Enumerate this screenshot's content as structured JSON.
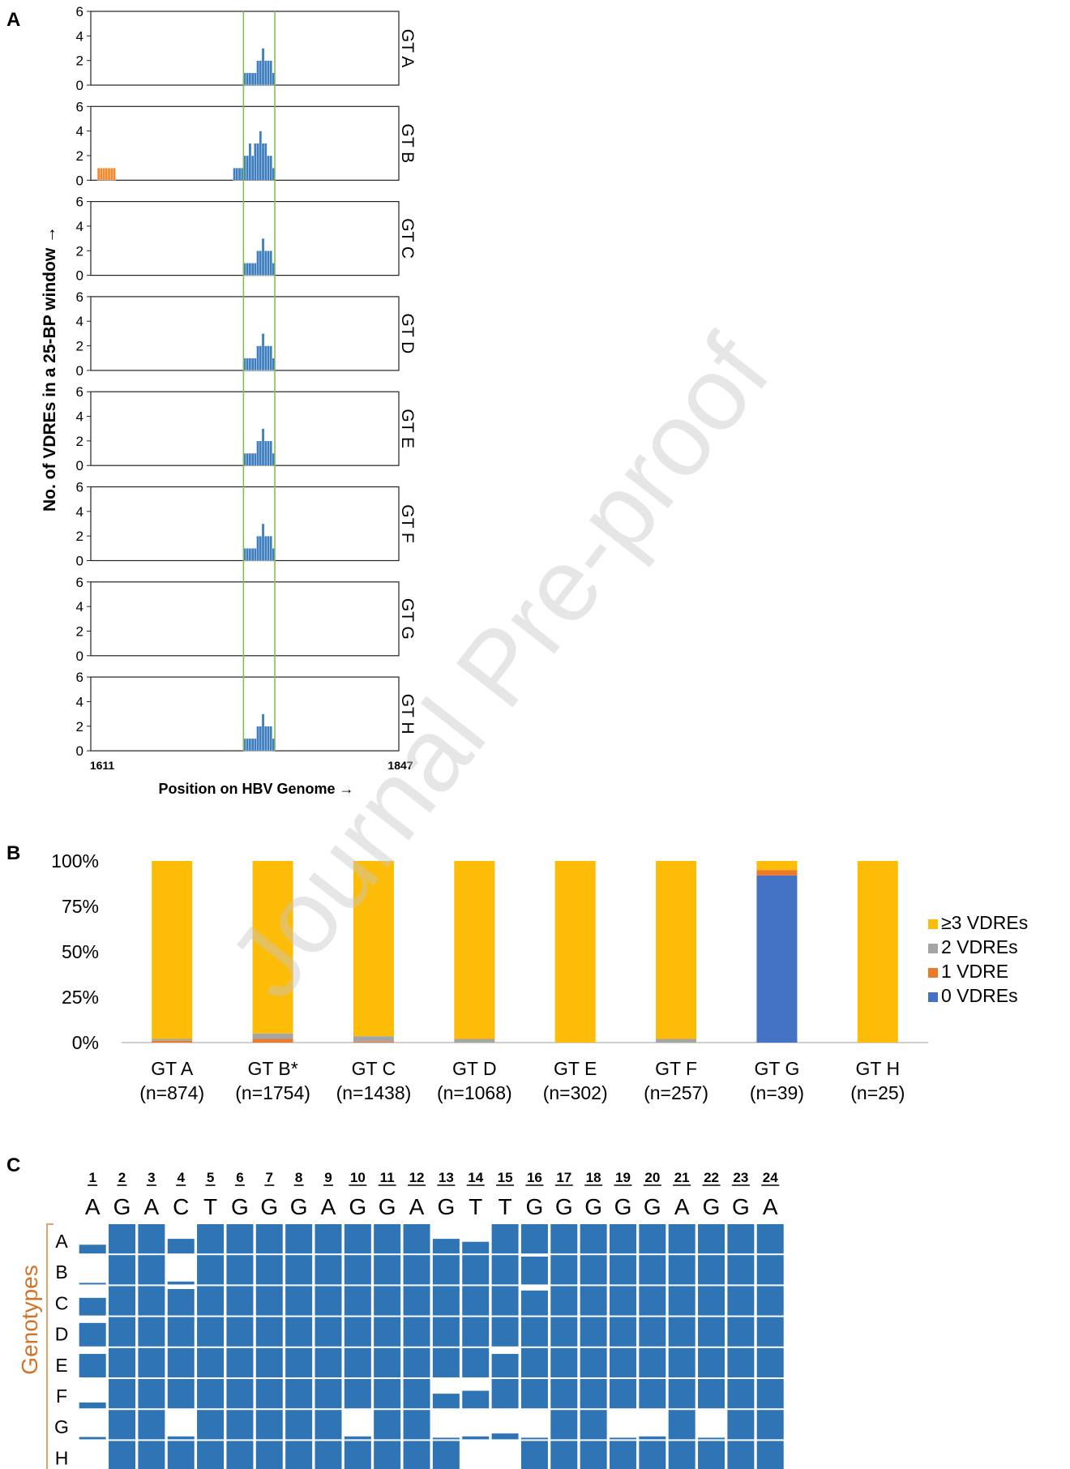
{
  "watermark": "Journal Pre-proof",
  "colors": {
    "bar_blue": "#3e7ebf",
    "bar_orange": "#f4892b",
    "highlight_green": "#7fbf5f",
    "stack_3plus": "#fdbc07",
    "stack_2": "#a5a5a5",
    "stack_1": "#ec7a2c",
    "stack_0": "#4472c4",
    "genotype_label": "#d0742c",
    "cell_blue": "#2f75b5"
  },
  "chart_data": [
    {
      "panel": "A",
      "type": "bar",
      "ylabel": "No. of VDREs in a 25-BP window →",
      "xlabel": "Position on HBV Genome →",
      "xlim": [
        1611,
        1847
      ],
      "x_tick_labels": [
        "1611",
        "1847"
      ],
      "ylim": [
        0,
        6
      ],
      "y_ticks": [
        0,
        2,
        4,
        6
      ],
      "y_tick_labels": [
        "0",
        "2",
        "4",
        "6"
      ],
      "highlight_region": [
        1728,
        1752
      ],
      "series": [
        {
          "name": "GT A",
          "x": [
            1729,
            1731,
            1733,
            1735,
            1737,
            1739,
            1741,
            1743,
            1745,
            1747,
            1749,
            1751
          ],
          "values": [
            1,
            1,
            1,
            1,
            1,
            2,
            2,
            3,
            2,
            2,
            2,
            1
          ]
        },
        {
          "name": "GT B",
          "x": [
            1617,
            1619,
            1621,
            1623,
            1625,
            1627,
            1629,
            1721,
            1723,
            1725,
            1727,
            1729,
            1731,
            1733,
            1735,
            1737,
            1739,
            1741,
            1743,
            1745,
            1747,
            1749,
            1751
          ],
          "values": [
            1,
            1,
            1,
            1,
            1,
            1,
            1,
            1,
            1,
            1,
            1,
            2,
            2,
            3,
            2,
            3,
            3,
            4,
            3,
            3,
            2,
            2,
            1
          ],
          "colors": [
            "orange",
            "orange",
            "orange",
            "orange",
            "orange",
            "orange",
            "orange",
            "blue",
            "blue",
            "blue",
            "blue",
            "blue",
            "blue",
            "blue",
            "blue",
            "blue",
            "blue",
            "blue",
            "blue",
            "blue",
            "blue",
            "blue",
            "blue"
          ]
        },
        {
          "name": "GT C",
          "x": [
            1729,
            1731,
            1733,
            1735,
            1737,
            1739,
            1741,
            1743,
            1745,
            1747,
            1749,
            1751
          ],
          "values": [
            1,
            1,
            1,
            1,
            1,
            2,
            2,
            3,
            2,
            2,
            2,
            1
          ]
        },
        {
          "name": "GT D",
          "x": [
            1729,
            1731,
            1733,
            1735,
            1737,
            1739,
            1741,
            1743,
            1745,
            1747,
            1749,
            1751
          ],
          "values": [
            1,
            1,
            1,
            1,
            1,
            2,
            2,
            3,
            2,
            2,
            2,
            1
          ]
        },
        {
          "name": "GT E",
          "x": [
            1729,
            1731,
            1733,
            1735,
            1737,
            1739,
            1741,
            1743,
            1745,
            1747,
            1749,
            1751
          ],
          "values": [
            1,
            1,
            1,
            1,
            1,
            2,
            2,
            3,
            2,
            2,
            2,
            1
          ]
        },
        {
          "name": "GT F",
          "x": [
            1729,
            1731,
            1733,
            1735,
            1737,
            1739,
            1741,
            1743,
            1745,
            1747,
            1749,
            1751
          ],
          "values": [
            1,
            1,
            1,
            1,
            1,
            2,
            2,
            3,
            2,
            2,
            2,
            1
          ]
        },
        {
          "name": "GT G",
          "x": [],
          "values": []
        },
        {
          "name": "GT H",
          "x": [
            1729,
            1731,
            1733,
            1735,
            1737,
            1739,
            1741,
            1743,
            1745,
            1747,
            1749,
            1751
          ],
          "values": [
            1,
            1,
            1,
            1,
            1,
            2,
            2,
            3,
            2,
            2,
            2,
            1
          ]
        }
      ]
    },
    {
      "panel": "B",
      "type": "bar",
      "stacked": true,
      "ylim": [
        0,
        100
      ],
      "y_tick_labels": [
        "100%",
        "75%",
        "50%",
        "25%",
        "0%"
      ],
      "y_ticks": [
        100,
        75,
        50,
        25,
        0
      ],
      "categories": [
        "GT A",
        "GT B*",
        "GT C",
        "GT D",
        "GT E",
        "GT F",
        "GT G",
        "GT H"
      ],
      "category_counts": [
        "(n=874)",
        "(n=1754)",
        "(n=1438)",
        "(n=1068)",
        "(n=302)",
        "(n=257)",
        "(n=39)",
        "(n=25)"
      ],
      "legend_position": "right",
      "series": [
        {
          "name": "0 VDREs",
          "values": [
            0,
            0,
            0,
            0,
            0,
            0,
            92,
            0
          ]
        },
        {
          "name": "1 VDRE",
          "values": [
            1,
            2,
            0.5,
            0,
            0,
            0,
            3,
            0
          ]
        },
        {
          "name": "2 VDREs",
          "values": [
            1,
            3,
            3,
            2,
            0,
            2,
            0,
            0
          ]
        },
        {
          "name": "≥3 VDREs",
          "values": [
            98,
            95,
            96.5,
            98,
            100,
            98,
            5,
            100
          ]
        }
      ]
    },
    {
      "panel": "C",
      "type": "heatmap",
      "ylabel": "Genotypes",
      "positions": [
        "1",
        "2",
        "3",
        "4",
        "5",
        "6",
        "7",
        "8",
        "9",
        "10",
        "11",
        "12",
        "13",
        "14",
        "15",
        "16",
        "17",
        "18",
        "19",
        "20",
        "21",
        "22",
        "23",
        "24"
      ],
      "consensus": [
        "A",
        "G",
        "A",
        "C",
        "T",
        "G",
        "G",
        "G",
        "A",
        "G",
        "G",
        "A",
        "G",
        "T",
        "T",
        "G",
        "G",
        "G",
        "G",
        "G",
        "A",
        "G",
        "G",
        "A"
      ],
      "rows": [
        "A",
        "B",
        "C",
        "D",
        "E",
        "F",
        "G",
        "H"
      ],
      "fill_fraction": [
        [
          0.3,
          1,
          1,
          0.5,
          1,
          1,
          1,
          1,
          1,
          1,
          1,
          1,
          0.5,
          0.4,
          1,
          1,
          1,
          1,
          1,
          1,
          1,
          1,
          1,
          1
        ],
        [
          0.05,
          1,
          1,
          0.1,
          1,
          1,
          1,
          1,
          1,
          1,
          1,
          1,
          1,
          1,
          1,
          0.95,
          1,
          1,
          1,
          1,
          1,
          1,
          1,
          1
        ],
        [
          0.6,
          1,
          1,
          0.9,
          1,
          1,
          1,
          1,
          1,
          1,
          1,
          1,
          1,
          1,
          1,
          0.85,
          1,
          1,
          1,
          1,
          1,
          1,
          1,
          1
        ],
        [
          0.8,
          1,
          1,
          1,
          1,
          1,
          1,
          1,
          1,
          1,
          1,
          1,
          1,
          1,
          1,
          1,
          1,
          1,
          1,
          1,
          1,
          1,
          1,
          1
        ],
        [
          0.8,
          1,
          1,
          1,
          1,
          1,
          1,
          1,
          1,
          1,
          1,
          1,
          1,
          1,
          0.8,
          1,
          1,
          1,
          1,
          1,
          1,
          1,
          1,
          1
        ],
        [
          0.2,
          1,
          1,
          1,
          1,
          1,
          1,
          1,
          1,
          1,
          1,
          1,
          0.5,
          0.6,
          1,
          1,
          1,
          1,
          1,
          1,
          1,
          1,
          1,
          1
        ],
        [
          0.08,
          1,
          1,
          0.1,
          1,
          1,
          1,
          1,
          1,
          0.1,
          1,
          1,
          0.05,
          0.1,
          0.2,
          0.05,
          1,
          1,
          0.05,
          0.1,
          1,
          0.05,
          1,
          1
        ],
        [
          0,
          1,
          1,
          1,
          1,
          1,
          1,
          1,
          1,
          1,
          1,
          1,
          1,
          0,
          0,
          1,
          1,
          1,
          1,
          1,
          1,
          1,
          1,
          1
        ]
      ]
    }
  ]
}
